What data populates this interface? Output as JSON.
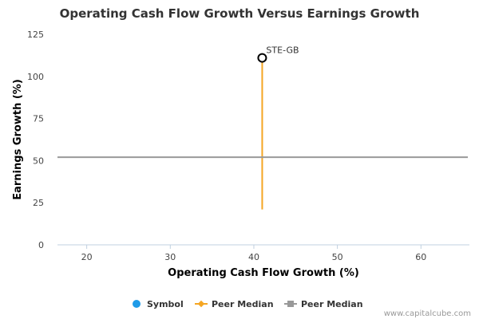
{
  "chart_data": {
    "type": "scatter",
    "title": "Operating Cash Flow Growth Versus Earnings Growth",
    "xlabel": "Operating Cash Flow Growth (%)",
    "ylabel": "Earnings Growth (%)",
    "xlim": [
      16.5,
      65.8
    ],
    "ylim": [
      0,
      125
    ],
    "x_ticks": [
      "20",
      "30",
      "40",
      "50",
      "60"
    ],
    "y_ticks": [
      "0",
      "25",
      "50",
      "75",
      "100",
      "125"
    ],
    "x_tick_values": [
      20,
      30,
      40,
      50,
      60
    ],
    "y_tick_values": [
      0,
      25,
      50,
      75,
      100,
      125
    ],
    "grid": false,
    "legend_position": "bottom",
    "series": [
      {
        "name": "Symbol",
        "color": "#1f9be8",
        "points": [
          {
            "x": 41,
            "y": 111,
            "label": "STE-GB"
          }
        ]
      },
      {
        "name": "Peer Median",
        "color": "#f5a623",
        "orientation": "vertical",
        "x": 41,
        "y_range": [
          21,
          111
        ]
      },
      {
        "name": "Peer Median",
        "color": "#999999",
        "orientation": "horizontal",
        "y": 52
      }
    ]
  },
  "credit": "www.capitalcube.com"
}
